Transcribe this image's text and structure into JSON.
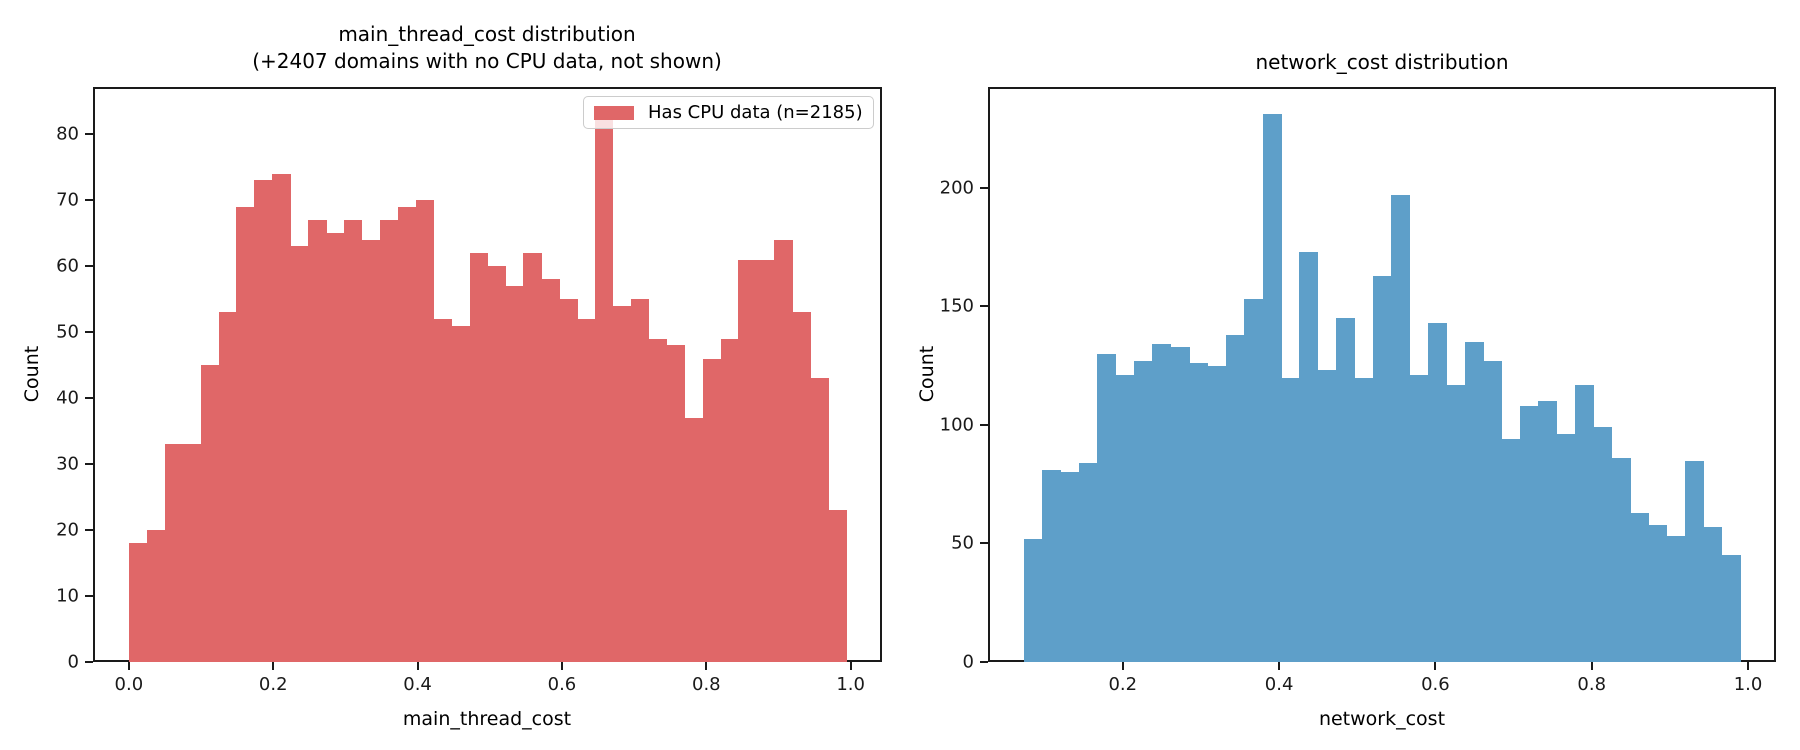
{
  "figure": {
    "background": "#ffffff",
    "text_color": "#000000"
  },
  "chart_data": [
    {
      "type": "bar",
      "subtype": "histogram",
      "title_line1": "main_thread_cost distribution",
      "title_line2": "(+2407 domains with no CPU data, not shown)",
      "xlabel": "main_thread_cost",
      "ylabel": "Count",
      "bar_color": "#e06768",
      "legend": {
        "visible": true,
        "label": "Has CPU data (n=2185)",
        "swatch_color": "#e06768",
        "position": "upper right"
      },
      "bin_start": 0.0,
      "bin_width": 0.02484,
      "counts": [
        18,
        20,
        33,
        33,
        45,
        53,
        69,
        73,
        74,
        63,
        67,
        65,
        67,
        64,
        67,
        69,
        70,
        52,
        51,
        62,
        60,
        57,
        62,
        58,
        55,
        52,
        83,
        54,
        55,
        49,
        48,
        37,
        46,
        49,
        61,
        61,
        64,
        53,
        43,
        23
      ],
      "total_n": 2185,
      "xlim": [
        -0.0497,
        1.0434
      ],
      "ylim": [
        0,
        87.15
      ],
      "xticks": [
        0.0,
        0.2,
        0.4,
        0.6,
        0.8,
        1.0
      ],
      "xtick_labels": [
        "0.0",
        "0.2",
        "0.4",
        "0.6",
        "0.8",
        "1.0"
      ],
      "yticks": [
        0,
        10,
        20,
        30,
        40,
        50,
        60,
        70,
        80
      ],
      "ytick_labels": [
        "0",
        "10",
        "20",
        "30",
        "40",
        "50",
        "60",
        "70",
        "80"
      ],
      "grid": false
    },
    {
      "type": "bar",
      "subtype": "histogram",
      "title_line1": "network_cost distribution",
      "title_line2": "",
      "xlabel": "network_cost",
      "ylabel": "Count",
      "bar_color": "#5e9fc9",
      "legend": {
        "visible": false,
        "label": "",
        "swatch_color": "#5e9fc9",
        "position": ""
      },
      "bin_start": 0.0733,
      "bin_width": 0.02351,
      "counts": [
        52,
        81,
        80,
        84,
        130,
        121,
        127,
        134,
        133,
        126,
        125,
        138,
        153,
        231,
        120,
        173,
        123,
        145,
        120,
        163,
        197,
        121,
        143,
        117,
        135,
        127,
        94,
        108,
        110,
        96,
        117,
        99,
        86,
        63,
        58,
        53,
        85,
        57,
        45
      ],
      "xlim": [
        0.0275,
        1.0358
      ],
      "ylim": [
        0,
        242.6
      ],
      "xticks": [
        0.2,
        0.4,
        0.6,
        0.8,
        1.0
      ],
      "xtick_labels": [
        "0.2",
        "0.4",
        "0.6",
        "0.8",
        "1.0"
      ],
      "yticks": [
        0,
        50,
        100,
        150,
        200
      ],
      "ytick_labels": [
        "0",
        "50",
        "100",
        "150",
        "200"
      ],
      "grid": false
    }
  ]
}
